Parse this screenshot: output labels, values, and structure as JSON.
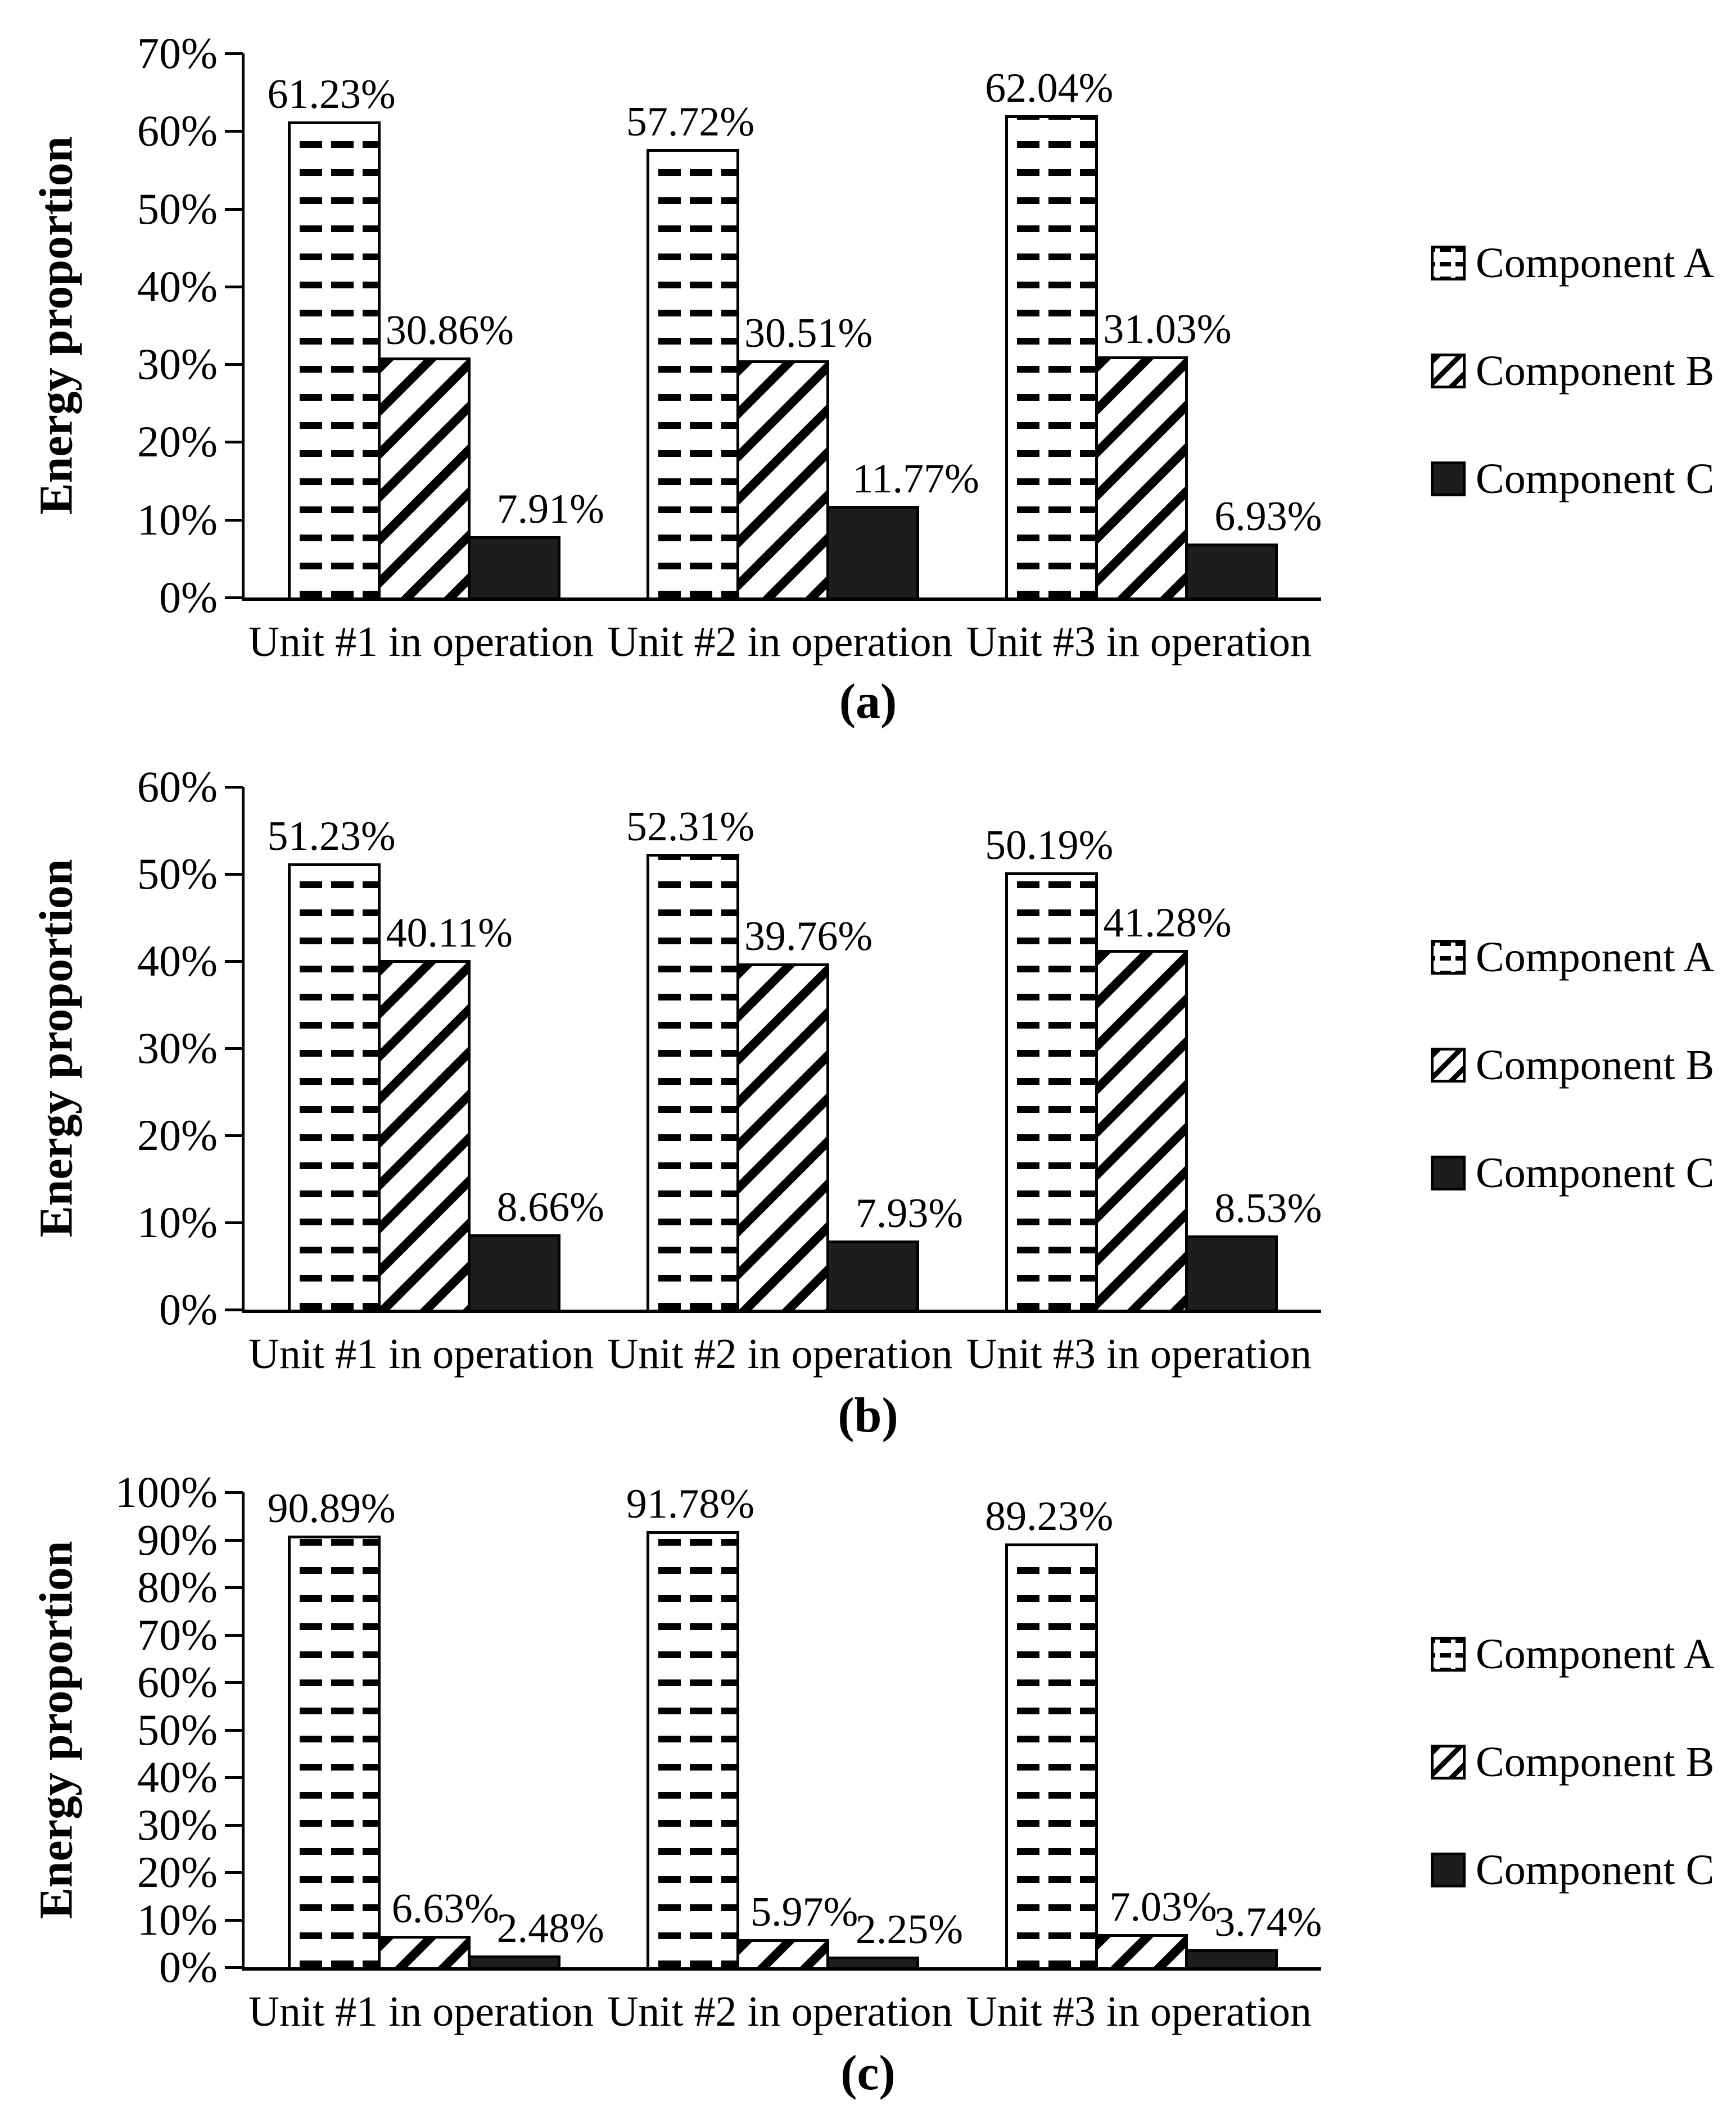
{
  "figure": {
    "ylabel": "Energy proportion",
    "legend": [
      "Component A",
      "Component B",
      "Component C"
    ],
    "colors": {
      "ink": "#000000",
      "component_a_fill": "#ffffff",
      "component_b_fill": "#ffffff",
      "component_c_fill": "#1d1d1d",
      "background": "#ffffff"
    }
  },
  "chart_data": [
    {
      "type": "bar",
      "panel": "(a)",
      "title": "",
      "xlabel": "",
      "ylabel": "Energy proportion",
      "ylim": [
        0,
        70
      ],
      "grid": false,
      "legend_position": "right",
      "yticks": [
        "0%",
        "10%",
        "20%",
        "30%",
        "40%",
        "50%",
        "60%",
        "70%"
      ],
      "categories": [
        "Unit #1 in operation",
        "Unit #2 in operation",
        "Unit #3 in operation"
      ],
      "series": [
        {
          "name": "Component A",
          "values": [
            61.23,
            57.72,
            62.04
          ],
          "labels": [
            "61.23%",
            "57.72%",
            "62.04%"
          ]
        },
        {
          "name": "Component B",
          "values": [
            30.86,
            30.51,
            31.03
          ],
          "labels": [
            "30.86%",
            "30.51%",
            "31.03%"
          ]
        },
        {
          "name": "Component C",
          "values": [
            7.91,
            11.77,
            6.93
          ],
          "labels": [
            "7.91%",
            "11.77%",
            "6.93%"
          ]
        }
      ]
    },
    {
      "type": "bar",
      "panel": "(b)",
      "title": "",
      "xlabel": "",
      "ylabel": "Energy proportion",
      "ylim": [
        0,
        60
      ],
      "grid": false,
      "legend_position": "right",
      "yticks": [
        "0%",
        "10%",
        "20%",
        "30%",
        "40%",
        "50%",
        "60%"
      ],
      "categories": [
        "Unit #1 in operation",
        "Unit #2 in operation",
        "Unit #3 in operation"
      ],
      "series": [
        {
          "name": "Component A",
          "values": [
            51.23,
            52.31,
            50.19
          ],
          "labels": [
            "51.23%",
            "52.31%",
            "50.19%"
          ]
        },
        {
          "name": "Component B",
          "values": [
            40.11,
            39.76,
            41.28
          ],
          "labels": [
            "40.11%",
            "39.76%",
            "41.28%"
          ]
        },
        {
          "name": "Component C",
          "values": [
            8.66,
            7.93,
            8.53
          ],
          "labels": [
            "8.66%",
            "7.93%",
            "8.53%"
          ]
        }
      ]
    },
    {
      "type": "bar",
      "panel": "(c)",
      "title": "",
      "xlabel": "",
      "ylabel": "Energy proportion",
      "ylim": [
        0,
        100
      ],
      "grid": false,
      "legend_position": "right",
      "yticks": [
        "0%",
        "10%",
        "20%",
        "30%",
        "40%",
        "50%",
        "60%",
        "70%",
        "80%",
        "90%",
        "100%"
      ],
      "categories": [
        "Unit #1 in operation",
        "Unit #2 in operation",
        "Unit #3 in operation"
      ],
      "series": [
        {
          "name": "Component A",
          "values": [
            90.89,
            91.78,
            89.23
          ],
          "labels": [
            "90.89%",
            "91.78%",
            "89.23%"
          ]
        },
        {
          "name": "Component B",
          "values": [
            6.63,
            5.97,
            7.03
          ],
          "labels": [
            "6.63%",
            "5.97%",
            "7.03%"
          ]
        },
        {
          "name": "Component C",
          "values": [
            2.48,
            2.25,
            3.74
          ],
          "labels": [
            "2.48%",
            "2.25%",
            "3.74%"
          ]
        }
      ]
    }
  ]
}
